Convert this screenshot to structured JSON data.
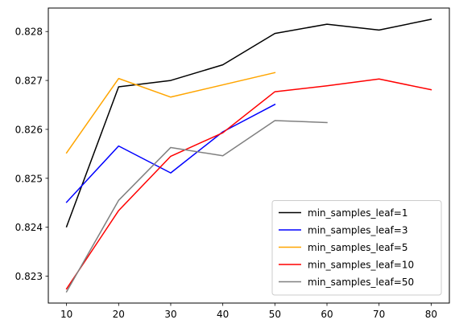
{
  "chart_data": {
    "type": "line",
    "title": "",
    "xlabel": "",
    "ylabel": "",
    "xlim": [
      6.5,
      83.5
    ],
    "ylim": [
      0.82245,
      0.82848
    ],
    "xticks": [
      10,
      20,
      30,
      40,
      50,
      60,
      70,
      80
    ],
    "xtick_labels": [
      "10",
      "20",
      "30",
      "40",
      "50",
      "60",
      "70",
      "80"
    ],
    "yticks": [
      0.823,
      0.824,
      0.825,
      0.826,
      0.827,
      0.828
    ],
    "ytick_labels": [
      "0.823",
      "0.824",
      "0.825",
      "0.826",
      "0.827",
      "0.828"
    ],
    "grid": false,
    "legend_position": "lower-right",
    "series": [
      {
        "name": "min_samples_leaf=1",
        "color": "#000000",
        "x": [
          10,
          20,
          30,
          40,
          50,
          60,
          70,
          80
        ],
        "y": [
          0.82401,
          0.82687,
          0.827,
          0.82732,
          0.82796,
          0.82815,
          0.82803,
          0.82825
        ]
      },
      {
        "name": "min_samples_leaf=3",
        "color": "#0000ff",
        "x": [
          10,
          20,
          30,
          40,
          50
        ],
        "y": [
          0.82451,
          0.82566,
          0.82511,
          0.82595,
          0.82651
        ]
      },
      {
        "name": "min_samples_leaf=5",
        "color": "#ffa500",
        "x": [
          10,
          20,
          30,
          50
        ],
        "y": [
          0.82552,
          0.82704,
          0.82666,
          0.82716
        ]
      },
      {
        "name": "min_samples_leaf=10",
        "color": "#ff0000",
        "x": [
          10,
          20,
          30,
          40,
          50,
          60,
          70,
          80
        ],
        "y": [
          0.82274,
          0.82434,
          0.82545,
          0.82593,
          0.82677,
          0.82689,
          0.82703,
          0.82681
        ]
      },
      {
        "name": "min_samples_leaf=50",
        "color": "#808080",
        "x": [
          10,
          20,
          30,
          40,
          50,
          60
        ],
        "y": [
          0.82268,
          0.82455,
          0.82563,
          0.82546,
          0.82618,
          0.82614
        ]
      }
    ]
  }
}
